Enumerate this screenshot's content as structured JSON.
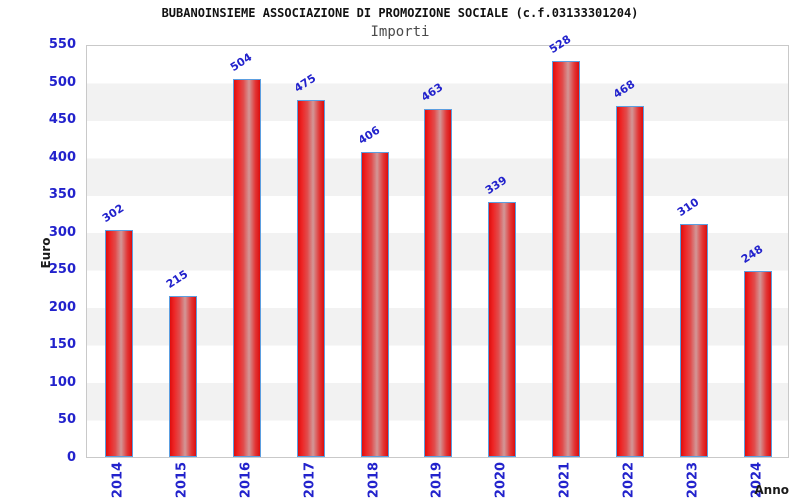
{
  "header": {
    "title": "BUBANOINSIEME ASSOCIAZIONE DI PROMOZIONE SOCIALE (c.f.03133301204)",
    "subtitle": "Importi"
  },
  "chart_data": {
    "type": "bar",
    "title": "BUBANOINSIEME ASSOCIAZIONE DI PROMOZIONE SOCIALE (c.f.03133301204)",
    "subtitle": "Importi",
    "xlabel": "Anno",
    "ylabel": "Euro",
    "categories": [
      "2014",
      "2015",
      "2016",
      "2017",
      "2018",
      "2019",
      "2020",
      "2021",
      "2022",
      "2023",
      "2024"
    ],
    "values": [
      302,
      215,
      504,
      475,
      406,
      463,
      339,
      528,
      468,
      310,
      248
    ],
    "ylim": [
      0,
      550
    ],
    "ytick_step": 50,
    "grid": "alternating-horizontal-bands",
    "legend": "none",
    "colors": {
      "bar_fill_edge": "#de0d0d",
      "bar_fill_center": "#d29797",
      "bar_border": "#5b9ee0",
      "tick_label_blue": "#2222cc",
      "band_gray": "#f2f2f2",
      "plot_border": "#c9c9c9",
      "title_black": "#111111",
      "subtitle_gray": "#4a4a4a"
    }
  }
}
